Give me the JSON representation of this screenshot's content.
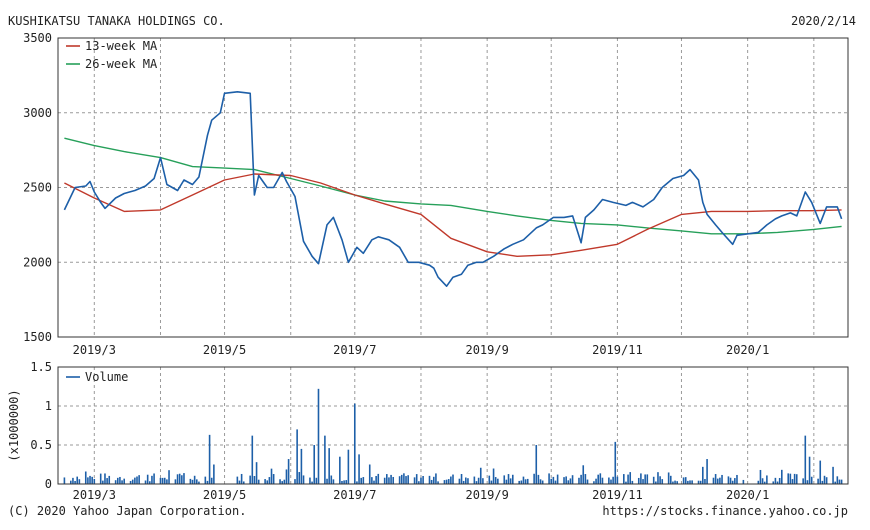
{
  "header": {
    "company": "KUSHIKATSU TANAKA HOLDINGS CO.",
    "date": "2020/2/14"
  },
  "footer": {
    "copyright": "(C) 2020 Yahoo Japan Corporation.",
    "url": "https://stocks.finance.yahoo.co.jp"
  },
  "colors": {
    "price": "#1d5fa8",
    "ma13": "#c0392b",
    "ma26": "#27a05a",
    "volume": "#1d5fa8",
    "grid": "#9a9a9a",
    "frame": "#333333"
  },
  "chart_data": [
    {
      "type": "line",
      "title": "",
      "xlabel": "",
      "ylabel": "",
      "ylim": [
        1500,
        3500
      ],
      "yticks": [
        "3500",
        "3000",
        "2500",
        "2000",
        "1500"
      ],
      "xticks": [
        "2019/3",
        "2019/5",
        "2019/7",
        "2019/9",
        "2019/11",
        "2020/1"
      ],
      "grid": true,
      "legend_position": "top-left",
      "series": [
        {
          "name": "",
          "role": "price",
          "points": [
            [
              "2019-02-15",
              2350
            ],
            [
              "2019-02-18",
              2440
            ],
            [
              "2019-02-20",
              2500
            ],
            [
              "2019-02-25",
              2510
            ],
            [
              "2019-02-27",
              2540
            ],
            [
              "2019-03-01",
              2470
            ],
            [
              "2019-03-04",
              2400
            ],
            [
              "2019-03-06",
              2360
            ],
            [
              "2019-03-11",
              2430
            ],
            [
              "2019-03-15",
              2460
            ],
            [
              "2019-03-20",
              2480
            ],
            [
              "2019-03-25",
              2510
            ],
            [
              "2019-03-29",
              2560
            ],
            [
              "2019-04-01",
              2700
            ],
            [
              "2019-04-04",
              2520
            ],
            [
              "2019-04-09",
              2480
            ],
            [
              "2019-04-12",
              2550
            ],
            [
              "2019-04-16",
              2520
            ],
            [
              "2019-04-19",
              2570
            ],
            [
              "2019-04-23",
              2850
            ],
            [
              "2019-04-25",
              2950
            ],
            [
              "2019-04-29",
              3000
            ],
            [
              "2019-05-01",
              3130
            ],
            [
              "2019-05-07",
              3140
            ],
            [
              "2019-05-13",
              3130
            ],
            [
              "2019-05-15",
              2450
            ],
            [
              "2019-05-17",
              2580
            ],
            [
              "2019-05-21",
              2500
            ],
            [
              "2019-05-24",
              2500
            ],
            [
              "2019-05-28",
              2600
            ],
            [
              "2019-05-30",
              2540
            ],
            [
              "2019-06-03",
              2440
            ],
            [
              "2019-06-07",
              2140
            ],
            [
              "2019-06-11",
              2040
            ],
            [
              "2019-06-14",
              1990
            ],
            [
              "2019-06-18",
              2250
            ],
            [
              "2019-06-21",
              2300
            ],
            [
              "2019-06-25",
              2150
            ],
            [
              "2019-06-28",
              2000
            ],
            [
              "2019-07-02",
              2100
            ],
            [
              "2019-07-05",
              2060
            ],
            [
              "2019-07-09",
              2150
            ],
            [
              "2019-07-12",
              2170
            ],
            [
              "2019-07-17",
              2150
            ],
            [
              "2019-07-22",
              2100
            ],
            [
              "2019-07-26",
              2000
            ],
            [
              "2019-07-31",
              2000
            ],
            [
              "2019-08-05",
              1980
            ],
            [
              "2019-08-07",
              1960
            ],
            [
              "2019-08-09",
              1900
            ],
            [
              "2019-08-13",
              1840
            ],
            [
              "2019-08-16",
              1900
            ],
            [
              "2019-08-20",
              1920
            ],
            [
              "2019-08-23",
              1980
            ],
            [
              "2019-08-27",
              2000
            ],
            [
              "2019-08-30",
              2000
            ],
            [
              "2019-09-04",
              2040
            ],
            [
              "2019-09-09",
              2090
            ],
            [
              "2019-09-13",
              2120
            ],
            [
              "2019-09-18",
              2150
            ],
            [
              "2019-09-24",
              2230
            ],
            [
              "2019-09-27",
              2250
            ],
            [
              "2019-10-02",
              2300
            ],
            [
              "2019-10-07",
              2300
            ],
            [
              "2019-10-11",
              2310
            ],
            [
              "2019-10-15",
              2130
            ],
            [
              "2019-10-17",
              2300
            ],
            [
              "2019-10-21",
              2350
            ],
            [
              "2019-10-25",
              2420
            ],
            [
              "2019-10-30",
              2400
            ],
            [
              "2019-11-05",
              2380
            ],
            [
              "2019-11-08",
              2400
            ],
            [
              "2019-11-13",
              2370
            ],
            [
              "2019-11-18",
              2420
            ],
            [
              "2019-11-22",
              2500
            ],
            [
              "2019-11-27",
              2560
            ],
            [
              "2019-12-02",
              2580
            ],
            [
              "2019-12-05",
              2620
            ],
            [
              "2019-12-09",
              2550
            ],
            [
              "2019-12-11",
              2400
            ],
            [
              "2019-12-13",
              2320
            ],
            [
              "2019-12-17",
              2250
            ],
            [
              "2019-12-20",
              2200
            ],
            [
              "2019-12-25",
              2120
            ],
            [
              "2019-12-27",
              2180
            ],
            [
              "2020-01-06",
              2200
            ],
            [
              "2020-01-10",
              2250
            ],
            [
              "2020-01-14",
              2290
            ],
            [
              "2020-01-17",
              2310
            ],
            [
              "2020-01-21",
              2330
            ],
            [
              "2020-01-24",
              2310
            ],
            [
              "2020-01-28",
              2470
            ],
            [
              "2020-01-31",
              2400
            ],
            [
              "2020-02-04",
              2260
            ],
            [
              "2020-02-07",
              2370
            ],
            [
              "2020-02-12",
              2370
            ],
            [
              "2020-02-14",
              2290
            ]
          ]
        },
        {
          "name": "13-week MA",
          "role": "ma13",
          "points": [
            [
              "2019-02-15",
              2530
            ],
            [
              "2019-03-01",
              2430
            ],
            [
              "2019-03-15",
              2340
            ],
            [
              "2019-04-01",
              2350
            ],
            [
              "2019-04-16",
              2450
            ],
            [
              "2019-05-01",
              2550
            ],
            [
              "2019-05-15",
              2590
            ],
            [
              "2019-06-01",
              2580
            ],
            [
              "2019-06-15",
              2530
            ],
            [
              "2019-07-01",
              2450
            ],
            [
              "2019-07-15",
              2390
            ],
            [
              "2019-08-01",
              2320
            ],
            [
              "2019-08-15",
              2160
            ],
            [
              "2019-09-01",
              2070
            ],
            [
              "2019-09-15",
              2040
            ],
            [
              "2019-10-01",
              2050
            ],
            [
              "2019-10-15",
              2080
            ],
            [
              "2019-11-01",
              2120
            ],
            [
              "2019-11-15",
              2220
            ],
            [
              "2019-12-01",
              2320
            ],
            [
              "2019-12-15",
              2340
            ],
            [
              "2020-01-01",
              2340
            ],
            [
              "2020-01-15",
              2345
            ],
            [
              "2020-02-01",
              2345
            ],
            [
              "2020-02-14",
              2350
            ]
          ]
        },
        {
          "name": "26-week MA",
          "role": "ma26",
          "points": [
            [
              "2019-02-15",
              2830
            ],
            [
              "2019-03-01",
              2780
            ],
            [
              "2019-03-15",
              2740
            ],
            [
              "2019-04-01",
              2700
            ],
            [
              "2019-04-16",
              2640
            ],
            [
              "2019-05-01",
              2630
            ],
            [
              "2019-05-15",
              2620
            ],
            [
              "2019-06-01",
              2560
            ],
            [
              "2019-06-15",
              2510
            ],
            [
              "2019-07-01",
              2450
            ],
            [
              "2019-07-15",
              2410
            ],
            [
              "2019-08-01",
              2390
            ],
            [
              "2019-08-15",
              2380
            ],
            [
              "2019-09-01",
              2340
            ],
            [
              "2019-09-15",
              2310
            ],
            [
              "2019-10-01",
              2280
            ],
            [
              "2019-10-15",
              2260
            ],
            [
              "2019-11-01",
              2250
            ],
            [
              "2019-11-15",
              2230
            ],
            [
              "2019-12-01",
              2210
            ],
            [
              "2019-12-15",
              2190
            ],
            [
              "2020-01-01",
              2190
            ],
            [
              "2020-01-15",
              2200
            ],
            [
              "2020-02-01",
              2220
            ],
            [
              "2020-02-14",
              2240
            ]
          ]
        }
      ]
    },
    {
      "type": "bar",
      "title": "",
      "xlabel": "",
      "ylabel": "(x1000000)",
      "ylim": [
        0,
        1.5
      ],
      "yticks": [
        "1.5",
        "1",
        "0.5",
        "0"
      ],
      "xticks": [
        "2019/3",
        "2019/5",
        "2019/7",
        "2019/9",
        "2019/11",
        "2020/1"
      ],
      "grid": true,
      "legend_position": "top-left",
      "series_name": "Volume",
      "spikes": [
        [
          "2019-04-24",
          0.63
        ],
        [
          "2019-04-26",
          0.25
        ],
        [
          "2019-05-14",
          0.62
        ],
        [
          "2019-05-16",
          0.28
        ],
        [
          "2019-05-31",
          0.32
        ],
        [
          "2019-06-04",
          0.7
        ],
        [
          "2019-06-06",
          0.45
        ],
        [
          "2019-06-12",
          0.5
        ],
        [
          "2019-06-14",
          1.22
        ],
        [
          "2019-06-17",
          0.62
        ],
        [
          "2019-06-19",
          0.46
        ],
        [
          "2019-06-24",
          0.35
        ],
        [
          "2019-06-28",
          0.44
        ],
        [
          "2019-07-01",
          1.03
        ],
        [
          "2019-07-03",
          0.38
        ],
        [
          "2019-07-08",
          0.25
        ],
        [
          "2019-09-24",
          0.5
        ],
        [
          "2019-10-16",
          0.24
        ],
        [
          "2019-10-31",
          0.54
        ],
        [
          "2019-12-11",
          0.22
        ],
        [
          "2019-12-13",
          0.32
        ],
        [
          "2020-01-28",
          0.62
        ],
        [
          "2020-01-30",
          0.35
        ],
        [
          "2020-02-04",
          0.3
        ],
        [
          "2020-02-10",
          0.22
        ]
      ],
      "baseline_range": [
        0.03,
        0.14
      ]
    }
  ]
}
